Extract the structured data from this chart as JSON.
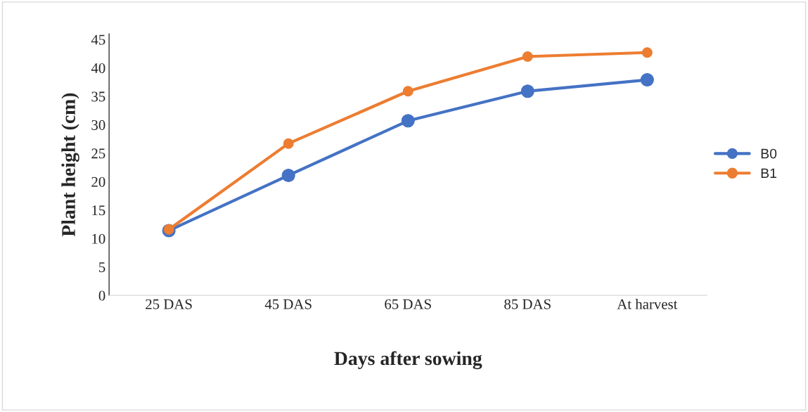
{
  "chart_data": {
    "type": "line",
    "xlabel": "Days after sowing",
    "ylabel": "Plant height (cm)",
    "categories": [
      "25 DAS",
      "45 DAS",
      "65 DAS",
      "85 DAS",
      "At harvest"
    ],
    "series": [
      {
        "name": "B0",
        "color": "#4472c4",
        "values": [
          11.4,
          21.1,
          30.7,
          35.9,
          37.9
        ]
      },
      {
        "name": "B1",
        "color": "#ed7d31",
        "values": [
          11.6,
          26.7,
          35.9,
          42.0,
          42.7
        ]
      }
    ],
    "ylim": [
      0,
      46
    ],
    "yticks": [
      0,
      5,
      10,
      15,
      20,
      25,
      30,
      35,
      40,
      45
    ],
    "grid": false,
    "legend": "right",
    "marker": "circle",
    "line_style": "solid"
  }
}
